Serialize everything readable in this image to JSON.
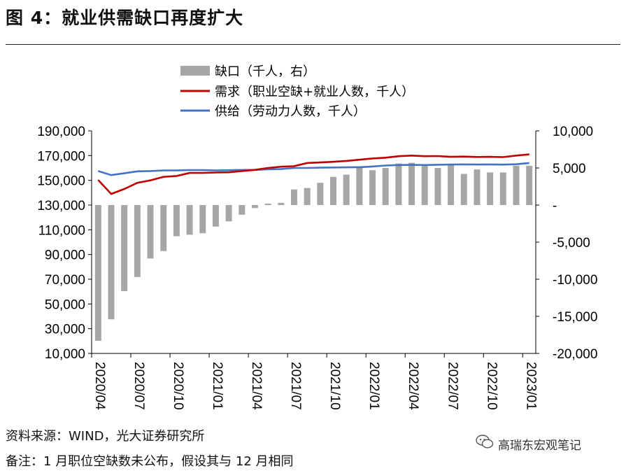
{
  "header": {
    "title": "图 4：就业供需缺口再度扩大"
  },
  "footer": {
    "source": "资料来源：WIND，光大证券研究所",
    "note": "备注：1 月职位空缺数未公布，假设其与 12 月相同",
    "watermark": "高瑞东宏观笔记"
  },
  "chart_data": {
    "type": "bar+line",
    "legend": [
      "缺口（千人，右）",
      "需求（职业空缺+就业人数，千人）",
      "供给（劳动力人数，千人）"
    ],
    "colors": {
      "gap": "#a6a6a6",
      "demand": "#c00000",
      "supply": "#4472c4"
    },
    "left_axis": {
      "min": 10000,
      "max": 190000,
      "ticks": [
        "190,000",
        "170,000",
        "150,000",
        "130,000",
        "110,000",
        "90,000",
        "70,000",
        "50,000",
        "30,000",
        "10,000"
      ]
    },
    "right_axis": {
      "min": -20000,
      "max": 10000,
      "ticks": [
        "10,000",
        "5,000",
        "-",
        "-5,000",
        "-10,000",
        "-15,000",
        "-20,000"
      ]
    },
    "x_tick_labels": [
      "2020/04",
      "2020/07",
      "2020/10",
      "2021/01",
      "2021/04",
      "2021/07",
      "2021/10",
      "2022/01",
      "2022/04",
      "2022/07",
      "2022/10",
      "2023/01"
    ],
    "months": [
      "2020/04",
      "2020/05",
      "2020/06",
      "2020/07",
      "2020/08",
      "2020/09",
      "2020/10",
      "2020/11",
      "2020/12",
      "2021/01",
      "2021/02",
      "2021/03",
      "2021/04",
      "2021/05",
      "2021/06",
      "2021/07",
      "2021/08",
      "2021/09",
      "2021/10",
      "2021/11",
      "2021/12",
      "2022/01",
      "2022/02",
      "2022/03",
      "2022/04",
      "2022/05",
      "2022/06",
      "2022/07",
      "2022/08",
      "2022/09",
      "2022/10",
      "2022/11",
      "2022/12",
      "2023/01"
    ],
    "gap": [
      -18300,
      -15400,
      -11600,
      -9700,
      -7200,
      -6200,
      -4200,
      -4000,
      -3800,
      -2900,
      -2200,
      -1300,
      -400,
      200,
      300,
      2100,
      2300,
      3000,
      3800,
      4100,
      5000,
      4700,
      5000,
      5600,
      5700,
      5300,
      5000,
      5400,
      4200,
      4800,
      4400,
      4400,
      5300,
      5300
    ],
    "demand": [
      150300,
      139000,
      143000,
      148000,
      150000,
      152800,
      153500,
      156000,
      156000,
      156300,
      156500,
      157500,
      158500,
      160000,
      161000,
      161500,
      164000,
      164500,
      165000,
      165700,
      166700,
      167700,
      168300,
      169500,
      170000,
      169500,
      169600,
      169000,
      169200,
      168900,
      169000,
      168800,
      170000,
      171000
    ],
    "supply": [
      157500,
      154200,
      155700,
      157300,
      157500,
      158000,
      158000,
      158300,
      158300,
      158000,
      158200,
      158400,
      158400,
      158900,
      159100,
      160000,
      160000,
      160200,
      160400,
      160500,
      160600,
      161200,
      162000,
      162400,
      162500,
      162400,
      162600,
      162800,
      162900,
      162800,
      162900,
      162700,
      163000,
      164000
    ]
  }
}
